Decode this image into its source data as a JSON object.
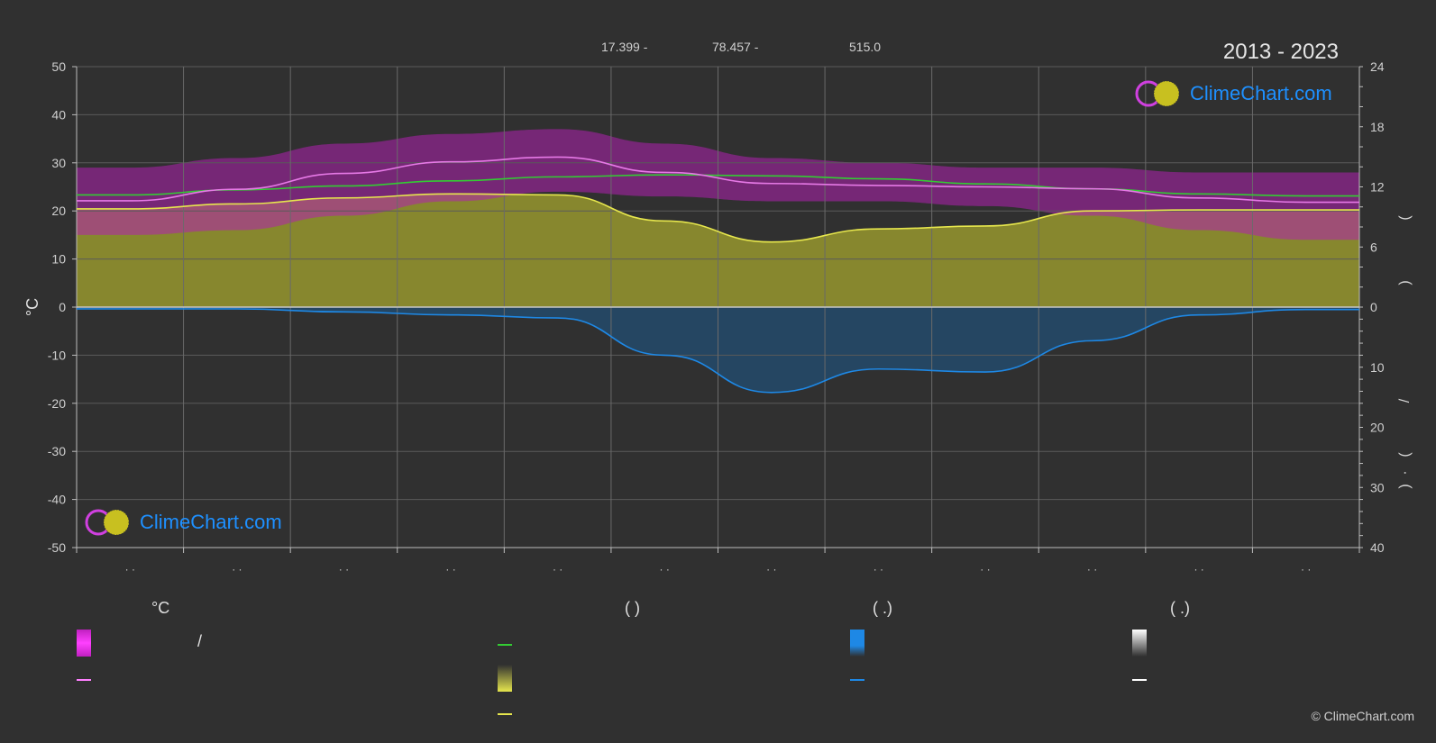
{
  "header": {
    "lat": "17.399 -",
    "lon": "78.457 -",
    "elev": "515.0",
    "period": "2013 - 2023"
  },
  "logo_text": "ClimeChart.com",
  "copyright": "© ClimeChart.com",
  "chart_data": {
    "type": "area",
    "y_left": {
      "label": "°C",
      "range": [
        -50,
        50
      ],
      "ticks": [
        50,
        40,
        30,
        20,
        10,
        0,
        -10,
        -20,
        -30,
        -40,
        -50
      ]
    },
    "y_right_top": {
      "ticks": [
        24,
        18,
        12,
        6,
        0
      ]
    },
    "y_right_bottom": {
      "ticks": [
        0,
        10,
        20,
        30,
        40
      ]
    },
    "x_tick_labels": [
      "· ·",
      "· ·",
      "· ·",
      "· ·",
      "· ·",
      "· ·",
      "· ·",
      "· ·",
      "· ·",
      "· ·",
      "· ·",
      "· ·"
    ],
    "right_axis_glyphs": [
      "(",
      ")",
      "/",
      "(",
      "·",
      ")"
    ],
    "grid": true,
    "x_months": [
      0.5,
      1.5,
      2.5,
      3.5,
      4.5,
      5.5,
      6.5,
      7.5,
      8.5,
      9.5,
      10.5,
      11.5
    ],
    "series": [
      {
        "key": "max_temp",
        "color": "#e679e6",
        "values": [
          22.1,
          24.5,
          27.8,
          30.2,
          31.2,
          28.0,
          25.7,
          25.3,
          25.0,
          24.6,
          22.7,
          21.8
        ]
      },
      {
        "key": "mean_temp_band_top",
        "color": "#b020b0",
        "values": [
          29,
          31,
          34,
          36,
          37,
          34,
          31,
          30,
          29,
          29,
          28,
          28
        ]
      },
      {
        "key": "min_temp_band_bottom",
        "color": "#d060b0",
        "values": [
          15,
          16,
          19,
          22,
          24,
          23,
          22,
          22,
          21,
          19,
          16,
          14
        ]
      },
      {
        "key": "daylight",
        "color": "#33cc33",
        "values": [
          11.2,
          11.7,
          12.1,
          12.6,
          13.0,
          13.2,
          13.1,
          12.8,
          12.3,
          11.8,
          11.3,
          11.1
        ]
      },
      {
        "key": "sunshine",
        "color": "#e6e64d",
        "values": [
          9.8,
          10.3,
          10.9,
          11.3,
          11.2,
          8.6,
          6.5,
          7.8,
          8.1,
          9.6,
          9.7,
          9.7
        ]
      },
      {
        "key": "precipitation",
        "color": "#1e88e5",
        "values": [
          0.3,
          0.3,
          0.8,
          1.3,
          1.8,
          8.0,
          14.2,
          10.3,
          10.8,
          5.6,
          1.3,
          0.4
        ]
      }
    ]
  },
  "legend": {
    "col1_header": "°C",
    "col2_header": "(          )",
    "col3_header": "(    .)",
    "col4_header": "(    .)",
    "slash": "/"
  },
  "colors": {
    "background": "#303030",
    "grid": "#5a5a5a",
    "axis": "#bdbdbd"
  }
}
